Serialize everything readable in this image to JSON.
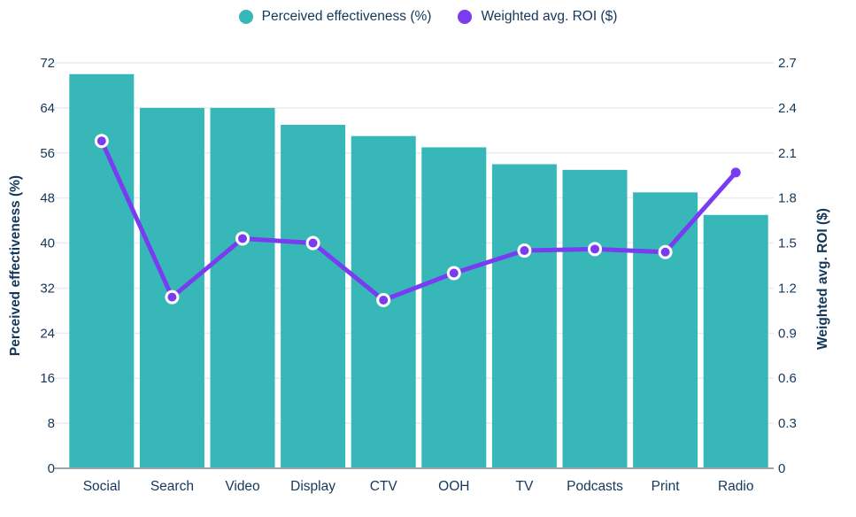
{
  "legend": {
    "items": [
      {
        "label": "Perceived effectiveness (%)",
        "color": "#38b7b9"
      },
      {
        "label": "Weighted avg. ROI ($)",
        "color": "#7a3cf0"
      }
    ]
  },
  "chart_data": {
    "type": "combo-bar-line",
    "categories": [
      "Social",
      "Search",
      "Video",
      "Display",
      "CTV",
      "OOH",
      "TV",
      "Podcasts",
      "Print",
      "Radio"
    ],
    "series": [
      {
        "name": "Perceived effectiveness (%)",
        "type": "bar",
        "axis": "left",
        "color": "#38b7b9",
        "values": [
          70,
          64,
          64,
          61,
          59,
          57,
          54,
          53,
          49,
          45
        ]
      },
      {
        "name": "Weighted avg. ROI ($)",
        "type": "line",
        "axis": "right",
        "color": "#7a3cf0",
        "values": [
          2.18,
          1.14,
          1.53,
          1.5,
          1.12,
          1.3,
          1.45,
          1.46,
          1.44,
          1.97
        ]
      }
    ],
    "left_axis": {
      "label": "Perceived effectiveness (%)",
      "min": 0,
      "max": 72,
      "tick_step": 8,
      "tick_labels": [
        "0",
        "8",
        "16",
        "24",
        "32",
        "40",
        "48",
        "56",
        "64",
        "72"
      ]
    },
    "right_axis": {
      "label": "Weighted avg. ROI ($)",
      "min": 0,
      "max": 2.7,
      "tick_step": 0.3,
      "tick_labels": [
        "0",
        "0.3",
        "0.6",
        "0.9",
        "1.2",
        "1.5",
        "1.8",
        "2.1",
        "2.4",
        "2.7"
      ]
    },
    "grid": true,
    "legend_position": "top-center",
    "styles": {
      "text_color": "#15375a",
      "grid_color": "#e9ecef",
      "axis_line_color": "#9ba5ad",
      "background": "#ffffff"
    }
  }
}
